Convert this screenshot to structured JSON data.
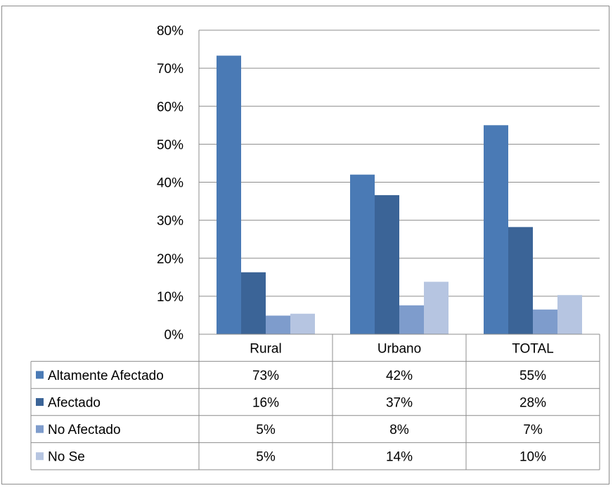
{
  "chart_data": {
    "type": "bar",
    "title": "",
    "xlabel": "",
    "ylabel": "",
    "categories": [
      "Rural",
      "Urbano",
      "TOTAL"
    ],
    "ylim": [
      0,
      80
    ],
    "yticks": [
      "0%",
      "10%",
      "20%",
      "30%",
      "40%",
      "50%",
      "60%",
      "70%",
      "80%"
    ],
    "grid": true,
    "legend_placement": "data-table-left",
    "series": [
      {
        "name": "Altamente Afectado",
        "color": "#4a7ab5",
        "values": [
          73.3,
          42.0,
          55.0
        ],
        "labels": [
          "73%",
          "42%",
          "55%"
        ]
      },
      {
        "name": "Afectado",
        "color": "#3b6497",
        "values": [
          16.3,
          36.6,
          28.2
        ],
        "labels": [
          "16%",
          "37%",
          "28%"
        ]
      },
      {
        "name": "No Afectado",
        "color": "#7e9ccc",
        "values": [
          4.9,
          7.6,
          6.5
        ],
        "labels": [
          "5%",
          "8%",
          "7%"
        ]
      },
      {
        "name": "No Se",
        "color": "#b6c5e1",
        "values": [
          5.4,
          13.8,
          10.3
        ],
        "labels": [
          "5%",
          "14%",
          "10%"
        ]
      }
    ]
  }
}
